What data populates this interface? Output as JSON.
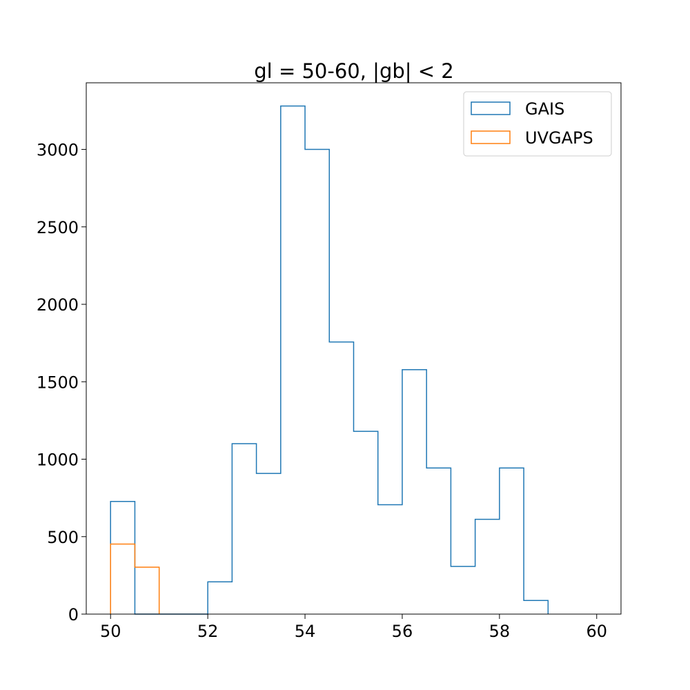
{
  "chart_data": {
    "type": "histogram",
    "title": "gl = 50-60, |gb| < 2",
    "xlabel": "",
    "ylabel": "",
    "xlim": [
      49.5,
      60.5
    ],
    "ylim": [
      0,
      3430
    ],
    "xticks": [
      50,
      52,
      54,
      56,
      58,
      60
    ],
    "yticks": [
      0,
      500,
      1000,
      1500,
      2000,
      2500,
      3000
    ],
    "grid": false,
    "legend_position": "top-right",
    "histtype": "step",
    "bin_edges": [
      50,
      50.5,
      51,
      51.5,
      52,
      52.5,
      53,
      53.5,
      54,
      54.5,
      55,
      55.5,
      56,
      56.5,
      57,
      57.5,
      58,
      58.5,
      59,
      59.5,
      60
    ],
    "series": [
      {
        "name": "GAIS",
        "color": "#1f77b4",
        "counts": [
          727,
          0,
          0,
          0,
          208,
          1100,
          908,
          3280,
          3000,
          1757,
          1180,
          706,
          1578,
          943,
          308,
          612,
          943,
          88,
          0,
          0
        ]
      },
      {
        "name": "UVGAPS",
        "color": "#ff7f0e",
        "counts": [
          452,
          303,
          0,
          0,
          0,
          0,
          0,
          0,
          0,
          0,
          0,
          0,
          0,
          0,
          0,
          0,
          0,
          0,
          0,
          0
        ]
      }
    ]
  }
}
